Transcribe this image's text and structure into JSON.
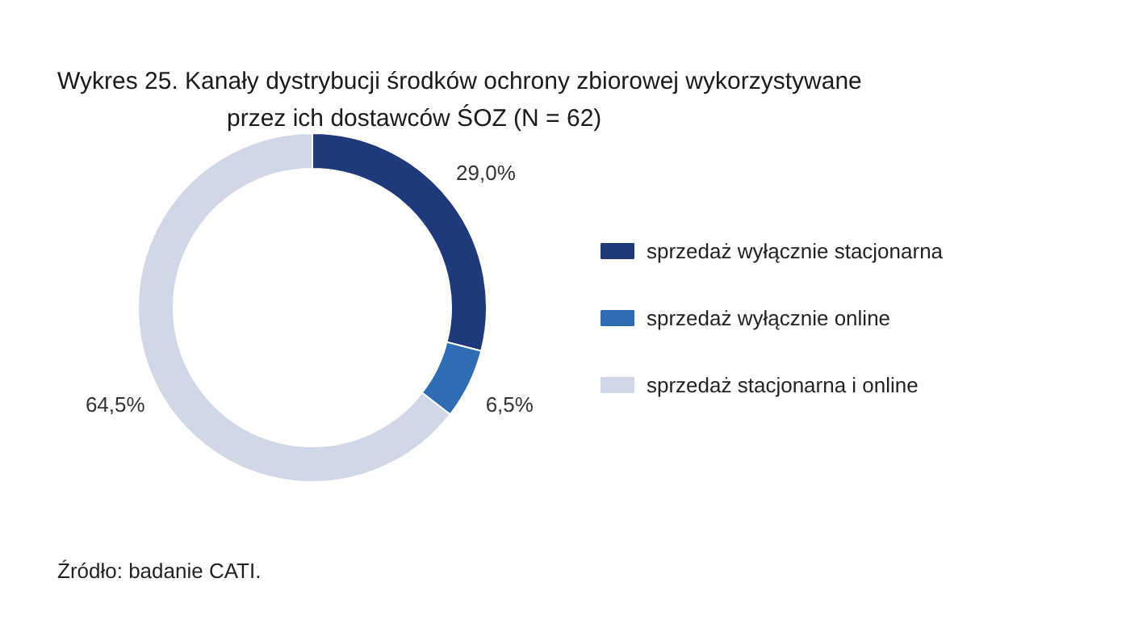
{
  "chart_data": {
    "type": "donut",
    "title": "Wykres 25. Kanały dystrybucji środków ochrony zbiorowej wykorzystywane przez ich dostawców ŚOZ (N = 62)",
    "categories": [
      "sprzedaż wyłącznie stacjonarna",
      "sprzedaż wyłącznie online",
      "sprzedaż stacjonarna i online"
    ],
    "values": [
      29.0,
      6.5,
      64.5
    ],
    "colors": [
      "#1f3a7a",
      "#2e6db4",
      "#d0d8e8"
    ],
    "value_labels": [
      "29,0%",
      "6,5%",
      "64,5%"
    ],
    "legend": "right",
    "annotations": [
      "Źródło: badanie CATI."
    ]
  }
}
